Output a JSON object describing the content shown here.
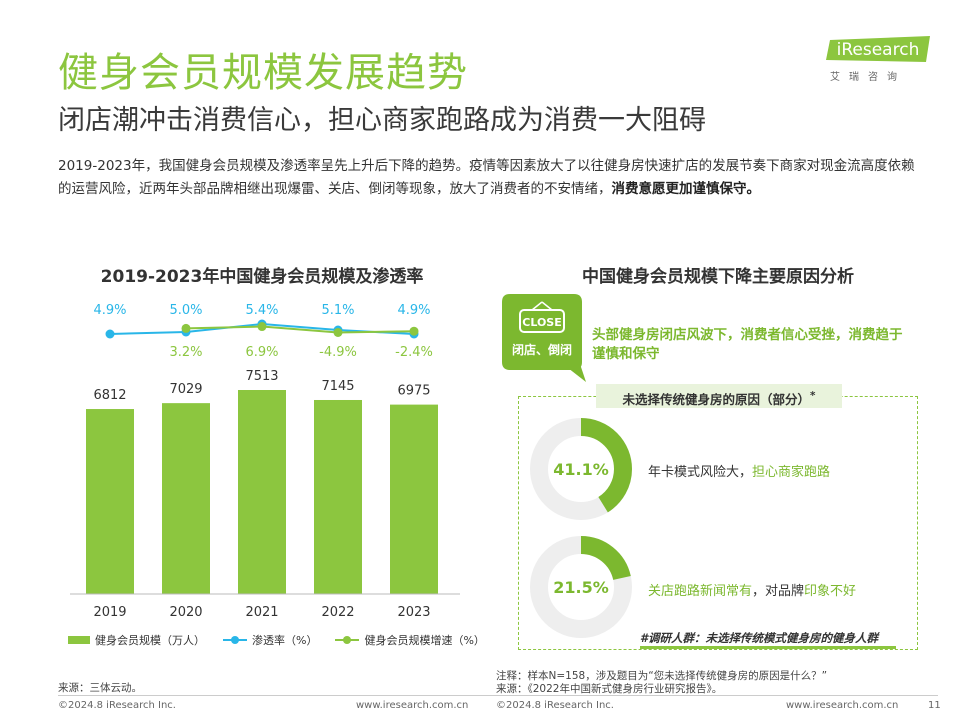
{
  "header": {
    "title": "健身会员规模发展趋势",
    "subtitle": "闭店潮冲击消费信心，担心商家跑路成为消费一大阻碍",
    "intro_plain": "2019-2023年，我国健身会员规模及渗透率呈先上升后下降的趋势。疫情等因素放大了以往健身房快速扩店的发展节奏下商家对现金流高度依赖的运营风险，近两年头部品牌相继出现爆雷、关店、倒闭等现象，放大了消费者的不安情绪，",
    "intro_bold": "消费意愿更加谨慎保守。"
  },
  "logo": {
    "brand": "iResearch",
    "sub": "艾瑞咨询",
    "color": "#8cc63f"
  },
  "colors": {
    "green": "#8cc63f",
    "green_dark": "#7cb82f",
    "blue": "#29b6e8",
    "ring_bg": "#eeeeee"
  },
  "left_chart_title": "2019-2023年中国健身会员规模及渗透率",
  "right_chart_title": "中国健身会员规模下降主要原因分析",
  "chart_data": [
    {
      "type": "bar",
      "title": "2019-2023年中国健身会员规模及渗透率",
      "categories": [
        "2019",
        "2020",
        "2021",
        "2022",
        "2023"
      ],
      "ylim": [
        0,
        8000
      ],
      "series": [
        {
          "name": "健身会员规模（万人）",
          "type": "bar",
          "values": [
            6812,
            7029,
            7513,
            7145,
            6975
          ],
          "labels": [
            "6812",
            "7029",
            "7513",
            "7145",
            "6975"
          ]
        },
        {
          "name": "渗透率（%）",
          "type": "line",
          "values": [
            4.9,
            5.0,
            5.4,
            5.1,
            4.9
          ],
          "labels": [
            "4.9%",
            "5.0%",
            "5.4%",
            "5.1%",
            "4.9%"
          ]
        },
        {
          "name": "健身会员规模增速（%）",
          "type": "line",
          "values": [
            null,
            3.2,
            6.9,
            -4.9,
            -2.4
          ],
          "labels": [
            "",
            "3.2%",
            "6.9%",
            "-4.9%",
            "-2.4%"
          ]
        }
      ],
      "legend": "bottom"
    },
    {
      "type": "pie",
      "title": "未选择传统健身房的原因（部分）",
      "series": [
        {
          "name": "年卡模式风险大，担心商家跑路",
          "value": 41.1,
          "label": "41.1%"
        },
        {
          "name": "关店跑路新闻常有，对品牌印象不好",
          "value": 21.5,
          "label": "21.5%"
        }
      ]
    }
  ],
  "right": {
    "badge_close": "CLOSE",
    "badge_text": "闭店、倒闭",
    "banner": "头部健身房闭店风波下，消费者信心受挫，消费趋于谨慎和保守",
    "box_label": "未选择传统健身房的原因（部分）",
    "box_label_mark": "*",
    "reason1_a": "年卡模式风险大，",
    "reason1_b": "担心商家跑路",
    "reason2_a": "关店跑路新闻常有",
    "reason2_b": "，对品牌",
    "reason2_c": "印象不好",
    "survey_tag": "#调研人群：未选择传统模式健身房的健身人群"
  },
  "notes": {
    "left_source": "来源：三体云动。",
    "right_note": "注释：样本N=158，涉及题目为“您未选择传统健身房的原因是什么？”",
    "right_source": "来源：《2022年中国新式健身房行业研究报告》。"
  },
  "footer": {
    "copyright": "©2024.8 iResearch Inc.",
    "url": "www.iresearch.com.cn",
    "page": "11"
  }
}
